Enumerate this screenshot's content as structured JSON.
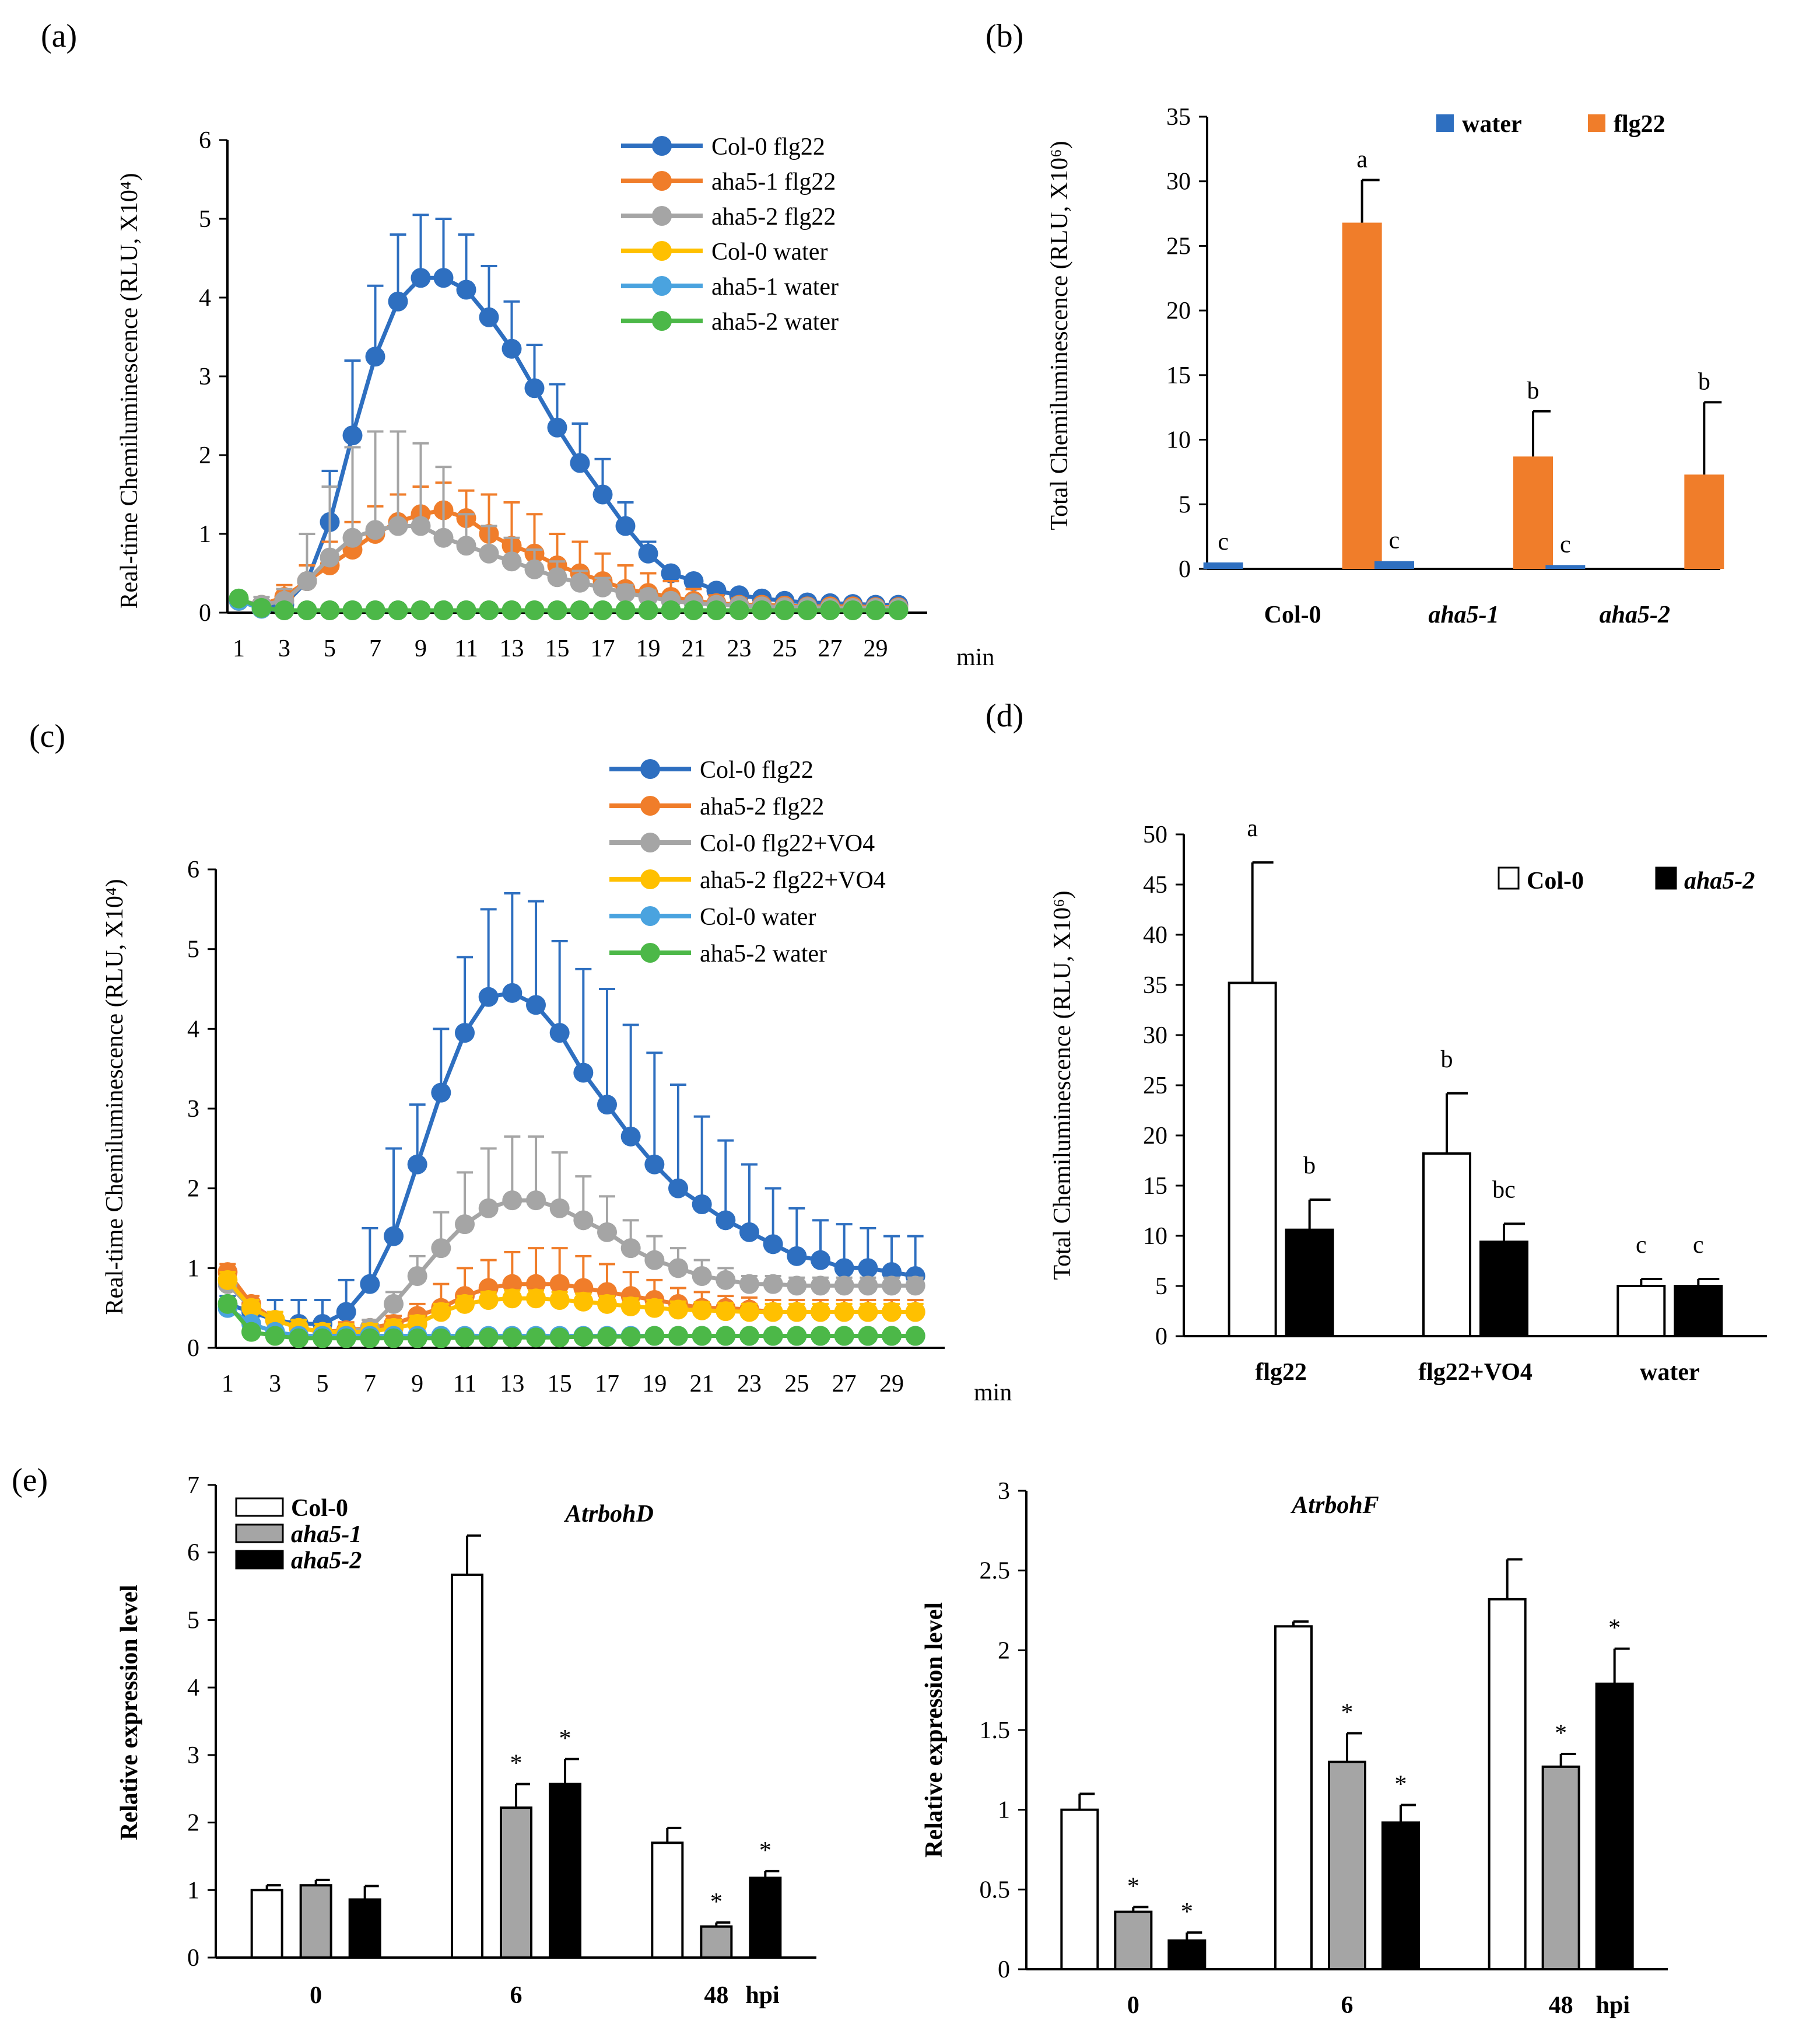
{
  "chart_data": [
    {
      "panel_label": "(a)",
      "type": "line",
      "ylabel": "Real-time Chemiluminescence (RLU, X10⁴)",
      "xlabel": "min",
      "ylim": [
        0,
        6
      ],
      "yticks": [
        "0",
        "1",
        "2",
        "3",
        "4",
        "5",
        "6"
      ],
      "x": [
        1,
        2,
        3,
        4,
        5,
        6,
        7,
        8,
        9,
        10,
        11,
        12,
        13,
        14,
        15,
        16,
        17,
        18,
        19,
        20,
        21,
        22,
        23,
        24,
        25,
        26,
        27,
        28,
        29,
        30
      ],
      "xtick_labels": [
        "1",
        "3",
        "5",
        "7",
        "9",
        "11",
        "13",
        "15",
        "17",
        "19",
        "21",
        "23",
        "25",
        "27",
        "29"
      ],
      "series": [
        {
          "name": "Col-0 flg22",
          "color": "#2E6FC0",
          "values": [
            0.15,
            0.08,
            0.1,
            0.4,
            1.15,
            2.25,
            3.25,
            3.95,
            4.25,
            4.25,
            4.1,
            3.75,
            3.35,
            2.85,
            2.35,
            1.9,
            1.5,
            1.1,
            0.75,
            0.5,
            0.4,
            0.28,
            0.22,
            0.18,
            0.15,
            0.13,
            0.12,
            0.11,
            0.1,
            0.1
          ],
          "errors": [
            0.05,
            0.05,
            0.05,
            0.2,
            0.65,
            0.95,
            0.9,
            0.85,
            0.8,
            0.75,
            0.7,
            0.65,
            0.6,
            0.55,
            0.55,
            0.5,
            0.45,
            0.3,
            0.15,
            0.05,
            0.03,
            0.02,
            0.02,
            0.02,
            0.02,
            0.02,
            0.02,
            0.02,
            0.02,
            0.02
          ]
        },
        {
          "name": "aha5-1 flg22",
          "color": "#F07D2A",
          "values": [
            0.15,
            0.1,
            0.2,
            0.4,
            0.6,
            0.8,
            1.0,
            1.15,
            1.25,
            1.3,
            1.2,
            1.0,
            0.85,
            0.75,
            0.6,
            0.5,
            0.4,
            0.3,
            0.25,
            0.2,
            0.15,
            0.12,
            0.1,
            0.1,
            0.09,
            0.08,
            0.08,
            0.08,
            0.07,
            0.07
          ],
          "errors": [
            0.05,
            0.1,
            0.15,
            0.2,
            0.3,
            0.35,
            0.35,
            0.35,
            0.35,
            0.35,
            0.35,
            0.5,
            0.55,
            0.5,
            0.4,
            0.4,
            0.35,
            0.3,
            0.25,
            0.2,
            0.15,
            0.1,
            0.08,
            0.06,
            0.05,
            0.05,
            0.05,
            0.05,
            0.05,
            0.05
          ]
        },
        {
          "name": "aha5-2 flg22",
          "color": "#A5A5A5",
          "values": [
            0.15,
            0.1,
            0.15,
            0.4,
            0.7,
            0.95,
            1.05,
            1.1,
            1.1,
            0.95,
            0.85,
            0.75,
            0.65,
            0.55,
            0.45,
            0.38,
            0.32,
            0.25,
            0.2,
            0.15,
            0.12,
            0.1,
            0.09,
            0.08,
            0.07,
            0.07,
            0.06,
            0.06,
            0.06,
            0.06
          ],
          "errors": [
            0.05,
            0.1,
            0.15,
            0.6,
            0.9,
            1.15,
            1.25,
            1.2,
            1.05,
            0.9,
            0.4,
            0.35,
            0.3,
            0.25,
            0.2,
            0.15,
            0.12,
            0.1,
            0.08,
            0.06,
            0.05,
            0.05,
            0.04,
            0.04,
            0.03,
            0.03,
            0.03,
            0.03,
            0.03,
            0.03
          ]
        },
        {
          "name": "Col-0 water",
          "color": "#FFC000",
          "values": [
            0.15,
            0.05,
            0.03,
            0.03,
            0.03,
            0.03,
            0.03,
            0.03,
            0.03,
            0.03,
            0.03,
            0.03,
            0.03,
            0.03,
            0.03,
            0.03,
            0.03,
            0.03,
            0.03,
            0.03,
            0.03,
            0.03,
            0.03,
            0.03,
            0.03,
            0.03,
            0.03,
            0.03,
            0.03,
            0.03
          ]
        },
        {
          "name": "aha5-1 water",
          "color": "#4AA3DF",
          "values": [
            0.15,
            0.05,
            0.03,
            0.03,
            0.03,
            0.03,
            0.03,
            0.03,
            0.03,
            0.03,
            0.03,
            0.03,
            0.03,
            0.03,
            0.03,
            0.03,
            0.03,
            0.03,
            0.03,
            0.03,
            0.03,
            0.03,
            0.03,
            0.03,
            0.03,
            0.03,
            0.03,
            0.03,
            0.03,
            0.03
          ]
        },
        {
          "name": "aha5-2 water",
          "color": "#4CB848",
          "values": [
            0.18,
            0.06,
            0.03,
            0.03,
            0.03,
            0.03,
            0.03,
            0.03,
            0.03,
            0.03,
            0.03,
            0.03,
            0.03,
            0.03,
            0.03,
            0.03,
            0.03,
            0.03,
            0.03,
            0.03,
            0.03,
            0.03,
            0.03,
            0.03,
            0.03,
            0.03,
            0.03,
            0.03,
            0.03,
            0.03
          ]
        }
      ]
    },
    {
      "panel_label": "(b)",
      "type": "bar",
      "ylabel": "Total Chemiluminescence (RLU, X10⁶)",
      "ylim": [
        0,
        35
      ],
      "yticks": [
        "0",
        "5",
        "10",
        "15",
        "20",
        "25",
        "30",
        "35"
      ],
      "categories": [
        "Col-0",
        "aha5-1",
        "aha5-2"
      ],
      "category_italic": [
        false,
        true,
        true
      ],
      "series": [
        {
          "name": "water",
          "color": "#2E6FC0",
          "values": [
            0.5,
            0.6,
            0.3
          ],
          "errors": [
            0,
            0,
            0
          ],
          "letters": [
            "c",
            "c",
            "c"
          ]
        },
        {
          "name": "flg22",
          "color": "#F07D2A",
          "values": [
            26.8,
            8.7,
            7.3
          ],
          "errors": [
            3.3,
            3.5,
            5.6
          ],
          "letters": [
            "a",
            "b",
            "b"
          ]
        }
      ]
    },
    {
      "panel_label": "(c)",
      "type": "line",
      "ylabel": "Real-time Chemiluminescence (RLU, X10⁴)",
      "xlabel": "min",
      "ylim": [
        0,
        6
      ],
      "yticks": [
        "0",
        "1",
        "2",
        "3",
        "4",
        "5",
        "6"
      ],
      "x": [
        1,
        2,
        3,
        4,
        5,
        6,
        7,
        8,
        9,
        10,
        11,
        12,
        13,
        14,
        15,
        16,
        17,
        18,
        19,
        20,
        21,
        22,
        23,
        24,
        25,
        26,
        27,
        28,
        29,
        30
      ],
      "xtick_labels": [
        "1",
        "3",
        "5",
        "7",
        "9",
        "11",
        "13",
        "15",
        "17",
        "19",
        "21",
        "23",
        "25",
        "27",
        "29"
      ],
      "series": [
        {
          "name": "Col-0 flg22",
          "color": "#2E6FC0",
          "values": [
            0.55,
            0.45,
            0.35,
            0.3,
            0.3,
            0.45,
            0.8,
            1.4,
            2.3,
            3.2,
            3.95,
            4.4,
            4.45,
            4.3,
            3.95,
            3.45,
            3.05,
            2.65,
            2.3,
            2.0,
            1.8,
            1.6,
            1.45,
            1.3,
            1.15,
            1.1,
            1.0,
            1.0,
            0.95,
            0.9
          ],
          "errors": [
            0.1,
            0.2,
            0.25,
            0.3,
            0.3,
            0.4,
            0.7,
            1.1,
            0.75,
            0.8,
            0.95,
            1.1,
            1.25,
            1.3,
            1.15,
            1.3,
            1.45,
            1.4,
            1.4,
            1.3,
            1.1,
            1.0,
            0.85,
            0.7,
            0.6,
            0.5,
            0.55,
            0.5,
            0.45,
            0.5
          ]
        },
        {
          "name": "aha5-2 flg22",
          "color": "#F07D2A",
          "values": [
            0.95,
            0.55,
            0.35,
            0.25,
            0.2,
            0.22,
            0.25,
            0.3,
            0.4,
            0.5,
            0.65,
            0.75,
            0.8,
            0.8,
            0.8,
            0.75,
            0.7,
            0.65,
            0.6,
            0.55,
            0.5,
            0.5,
            0.48,
            0.45,
            0.45,
            0.45,
            0.45,
            0.45,
            0.45,
            0.45
          ],
          "errors": [
            0.1,
            0.1,
            0.1,
            0.1,
            0.1,
            0.1,
            0.1,
            0.1,
            0.15,
            0.3,
            0.35,
            0.35,
            0.4,
            0.45,
            0.45,
            0.4,
            0.35,
            0.3,
            0.25,
            0.2,
            0.2,
            0.15,
            0.15,
            0.15,
            0.15,
            0.15,
            0.15,
            0.15,
            0.15,
            0.15
          ]
        },
        {
          "name": "Col-0 flg22+VO4",
          "color": "#A5A5A5",
          "values": [
            0.8,
            0.5,
            0.35,
            0.25,
            0.2,
            0.2,
            0.25,
            0.55,
            0.9,
            1.25,
            1.55,
            1.75,
            1.85,
            1.85,
            1.75,
            1.6,
            1.45,
            1.25,
            1.1,
            1.0,
            0.9,
            0.85,
            0.8,
            0.8,
            0.78,
            0.78,
            0.78,
            0.78,
            0.78,
            0.78
          ],
          "errors": [
            0.1,
            0.1,
            0.1,
            0.1,
            0.1,
            0.1,
            0.1,
            0.15,
            0.25,
            0.45,
            0.65,
            0.75,
            0.8,
            0.8,
            0.7,
            0.55,
            0.45,
            0.35,
            0.3,
            0.25,
            0.2,
            0.15,
            0.1,
            0.1,
            0.1,
            0.1,
            0.1,
            0.1,
            0.1,
            0.1
          ]
        },
        {
          "name": "aha5-2 flg22+VO4",
          "color": "#FFC000",
          "values": [
            0.85,
            0.5,
            0.35,
            0.25,
            0.2,
            0.2,
            0.2,
            0.25,
            0.3,
            0.45,
            0.55,
            0.6,
            0.62,
            0.62,
            0.6,
            0.58,
            0.55,
            0.52,
            0.5,
            0.48,
            0.47,
            0.46,
            0.45,
            0.45,
            0.45,
            0.45,
            0.45,
            0.45,
            0.45,
            0.45
          ],
          "errors": [
            0.1,
            0.1,
            0.1,
            0.1,
            0.1,
            0.1,
            0.1,
            0.1,
            0.1,
            0.1,
            0.1,
            0.1,
            0.1,
            0.1,
            0.1,
            0.1,
            0.1,
            0.1,
            0.1,
            0.1,
            0.1,
            0.1,
            0.1,
            0.1,
            0.1,
            0.1,
            0.1,
            0.1,
            0.1,
            0.1
          ]
        },
        {
          "name": "Col-0 water",
          "color": "#4AA3DF",
          "values": [
            0.5,
            0.3,
            0.2,
            0.15,
            0.15,
            0.15,
            0.15,
            0.15,
            0.15,
            0.15,
            0.15,
            0.15,
            0.15,
            0.15,
            0.15,
            0.15,
            0.15,
            0.15,
            0.15,
            0.15,
            0.15,
            0.15,
            0.15,
            0.15,
            0.15,
            0.15,
            0.15,
            0.15,
            0.15,
            0.15
          ]
        },
        {
          "name": "aha5-2 water",
          "color": "#4CB848",
          "values": [
            0.55,
            0.2,
            0.15,
            0.12,
            0.12,
            0.12,
            0.12,
            0.12,
            0.12,
            0.12,
            0.13,
            0.13,
            0.13,
            0.13,
            0.13,
            0.14,
            0.14,
            0.14,
            0.15,
            0.15,
            0.15,
            0.15,
            0.15,
            0.15,
            0.15,
            0.15,
            0.15,
            0.15,
            0.15,
            0.15
          ]
        }
      ]
    },
    {
      "panel_label": "(d)",
      "type": "bar",
      "ylabel": "Total Chemiluminescence (RLU, X10⁶)",
      "ylim": [
        0,
        50
      ],
      "yticks": [
        "0",
        "5",
        "10",
        "15",
        "20",
        "25",
        "30",
        "35",
        "40",
        "45",
        "50"
      ],
      "categories": [
        "flg22",
        "flg22+VO4",
        "water"
      ],
      "category_italic": [
        false,
        false,
        false
      ],
      "series": [
        {
          "name": "Col-0",
          "color": "#FFFFFF",
          "italic": false,
          "values": [
            35.2,
            18.2,
            5.0
          ],
          "errors": [
            12.0,
            6.0,
            0.7
          ],
          "letters": [
            "a",
            "b",
            "c"
          ]
        },
        {
          "name": "aha5-2",
          "color": "#000000",
          "italic": true,
          "values": [
            10.6,
            9.4,
            5.0
          ],
          "errors": [
            3.0,
            1.8,
            0.7
          ],
          "letters": [
            "b",
            "bc",
            "c"
          ]
        }
      ]
    },
    {
      "panel_label": "(e)",
      "type": "bar",
      "title": "AtrbohD",
      "ylabel": "Relative expression level",
      "ylim": [
        0,
        7
      ],
      "yticks": [
        "0",
        "1",
        "2",
        "3",
        "4",
        "5",
        "6",
        "7"
      ],
      "categories": [
        "0",
        "6",
        "48"
      ],
      "xunit": "hpi",
      "series": [
        {
          "name": "Col-0",
          "color": "#FFFFFF",
          "italic": false,
          "values": [
            1.0,
            5.67,
            1.7
          ],
          "errors": [
            0.07,
            0.58,
            0.22
          ],
          "marks": [
            "",
            "",
            ""
          ]
        },
        {
          "name": "aha5-1",
          "color": "#A5A5A5",
          "italic": true,
          "values": [
            1.07,
            2.22,
            0.46
          ],
          "errors": [
            0.08,
            0.35,
            0.06
          ],
          "marks": [
            "",
            "*",
            "*"
          ]
        },
        {
          "name": "aha5-2",
          "color": "#000000",
          "italic": true,
          "values": [
            0.86,
            2.57,
            1.18
          ],
          "errors": [
            0.2,
            0.37,
            0.1
          ],
          "marks": [
            "",
            "*",
            "*"
          ]
        }
      ]
    },
    {
      "panel_label": "",
      "type": "bar",
      "title": "AtrbohF",
      "ylabel": "Relative expression level",
      "ylim": [
        0,
        3
      ],
      "yticks": [
        "0",
        "0.5",
        "1",
        "1.5",
        "2",
        "2.5",
        "3"
      ],
      "categories": [
        "0",
        "6",
        "48"
      ],
      "xunit": "hpi",
      "series": [
        {
          "name": "Col-0",
          "color": "#FFFFFF",
          "italic": false,
          "values": [
            1.0,
            2.15,
            2.32
          ],
          "errors": [
            0.1,
            0.03,
            0.25
          ],
          "marks": [
            "",
            "",
            ""
          ]
        },
        {
          "name": "aha5-1",
          "color": "#A5A5A5",
          "italic": true,
          "values": [
            0.36,
            1.3,
            1.27
          ],
          "errors": [
            0.03,
            0.18,
            0.08
          ],
          "marks": [
            "*",
            "*",
            "*"
          ]
        },
        {
          "name": "aha5-2",
          "color": "#000000",
          "italic": true,
          "values": [
            0.18,
            0.92,
            1.79
          ],
          "errors": [
            0.05,
            0.11,
            0.22
          ],
          "marks": [
            "*",
            "*",
            "*"
          ]
        }
      ]
    }
  ]
}
